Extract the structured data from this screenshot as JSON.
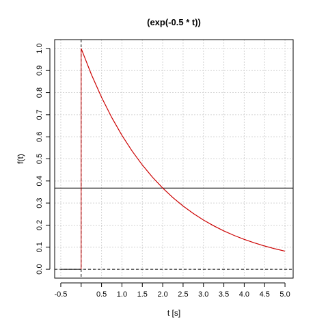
{
  "chart_data": {
    "type": "line",
    "title": "(exp(-0.5 * t))",
    "xlabel": "t [s]",
    "ylabel": "f(t)",
    "xlim": [
      -0.65,
      5.2
    ],
    "ylim": [
      -0.04,
      1.04
    ],
    "x_ticks": [
      "-0.5",
      "0.5",
      "1.0",
      "1.5",
      "2.0",
      "2.5",
      "3.0",
      "3.5",
      "4.0",
      "4.5",
      "5.0"
    ],
    "x_tick_values": [
      -0.5,
      0.5,
      1.0,
      1.5,
      2.0,
      2.5,
      3.0,
      3.5,
      4.0,
      4.5,
      5.0
    ],
    "y_ticks": [
      "0.0",
      "0.1",
      "0.2",
      "0.3",
      "0.4",
      "0.5",
      "0.6",
      "0.7",
      "0.8",
      "0.9",
      "1.0"
    ],
    "y_tick_values": [
      0,
      0.1,
      0.2,
      0.3,
      0.4,
      0.5,
      0.6,
      0.7,
      0.8,
      0.9,
      1.0
    ],
    "grid": true,
    "series": [
      {
        "color": "#cc0000",
        "x": [
          0,
          0.25,
          0.5,
          0.75,
          1.0,
          1.25,
          1.5,
          1.75,
          2.0,
          2.25,
          2.5,
          2.75,
          3.0,
          3.25,
          3.5,
          3.75,
          4.0,
          4.25,
          4.5,
          4.75,
          5.0
        ],
        "y": [
          1.0,
          0.8825,
          0.7788,
          0.6873,
          0.6065,
          0.5353,
          0.4724,
          0.4169,
          0.3679,
          0.3247,
          0.2865,
          0.2528,
          0.2231,
          0.1969,
          0.1738,
          0.1534,
          0.1353,
          0.1194,
          0.1054,
          0.093,
          0.0821
        ]
      }
    ],
    "zero_segment": {
      "x": [
        -0.5,
        0
      ],
      "y": [
        0,
        0
      ],
      "color": "#000000"
    },
    "reference_lines": {
      "vline_x": 0,
      "hline_dashed_y": 0,
      "hline_solid_y": 0.3679
    }
  }
}
